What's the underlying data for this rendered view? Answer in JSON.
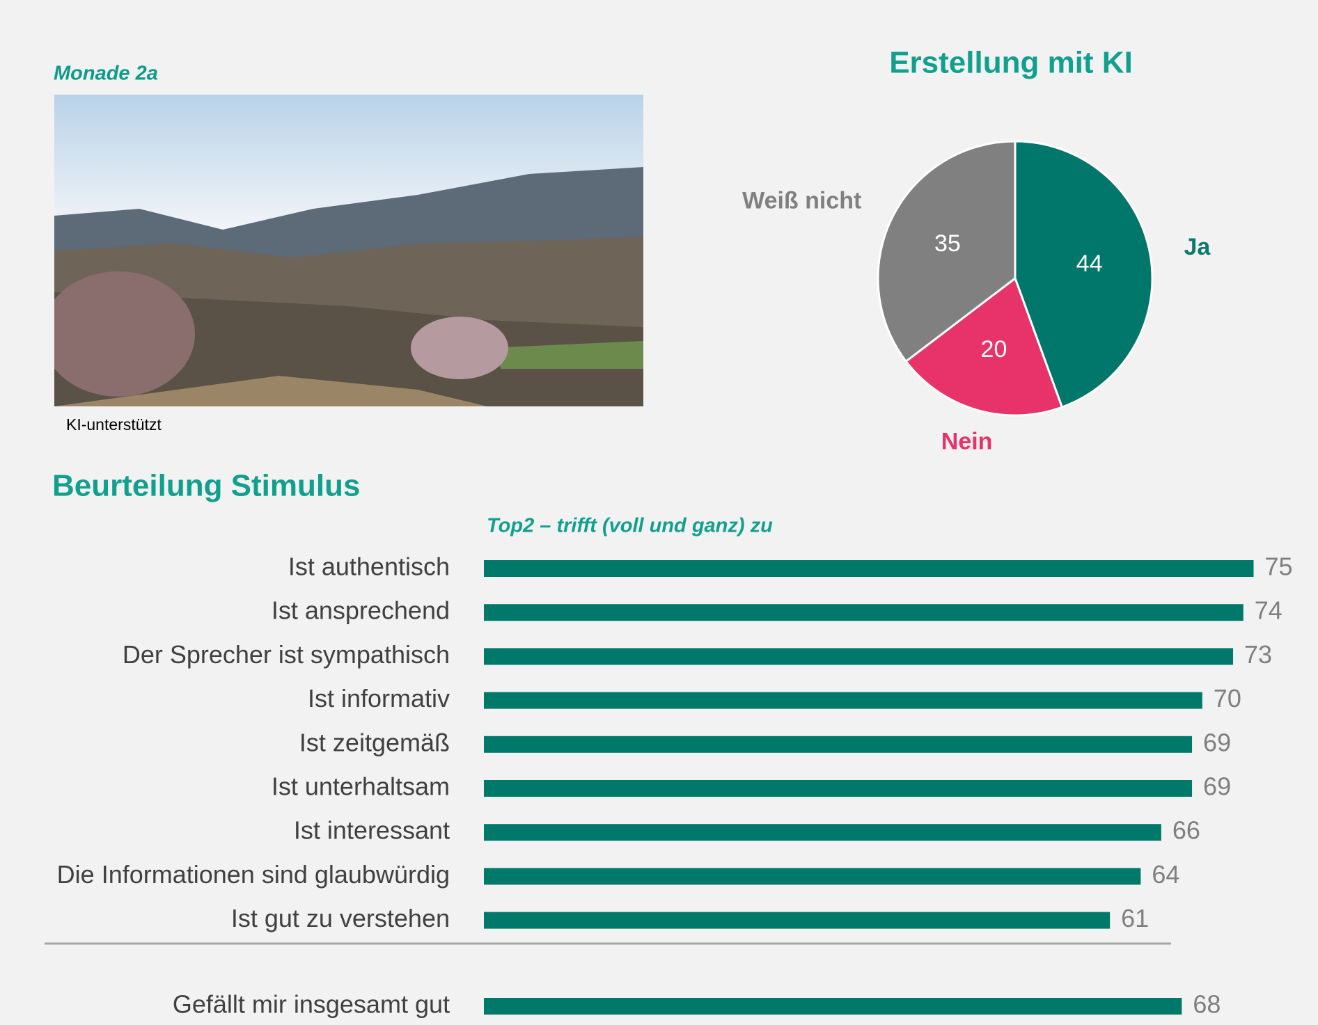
{
  "header": {
    "label": "Monade 2a"
  },
  "image": {
    "caption": "KI-unterstützt"
  },
  "chart_data": [
    {
      "type": "pie",
      "title": "Erstellung mit KI",
      "categories": [
        "Ja",
        "Nein",
        "Weiß nicht"
      ],
      "values": [
        44,
        20,
        35
      ],
      "colors": [
        "#00776a",
        "#e8336a",
        "#808080"
      ],
      "label_colors": [
        "#0b7a6c",
        "#e8336a",
        "#808080"
      ]
    },
    {
      "type": "bar",
      "title": "Beurteilung Stimulus",
      "subtitle": "Top2 – trifft (voll und ganz) zu",
      "categories": [
        "Ist authentisch",
        "Ist ansprechend",
        "Der Sprecher ist sympathisch",
        "Ist informativ",
        "Ist zeitgemäß",
        "Ist unterhaltsam",
        "Ist interessant",
        "Die Informationen sind glaubwürdig",
        "Ist gut zu verstehen",
        "Gefällt mir insgesamt gut"
      ],
      "values": [
        75,
        74,
        73,
        70,
        69,
        69,
        66,
        64,
        61,
        68
      ],
      "color": "#00796b"
    }
  ]
}
